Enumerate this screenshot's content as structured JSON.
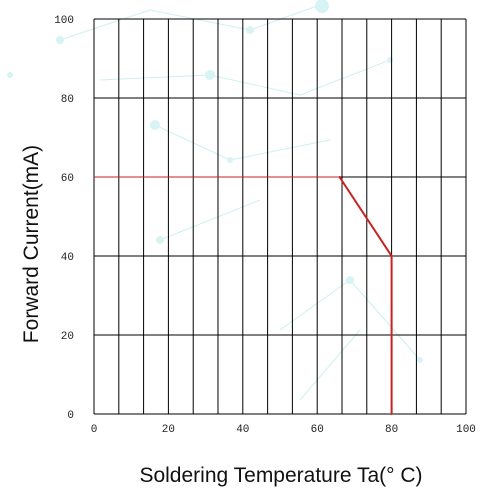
{
  "chart_data": {
    "type": "line",
    "title": "",
    "xlabel": "Soldering Temperature Ta(° C)",
    "ylabel": "Forward Current(mA)",
    "xlim": [
      0,
      100
    ],
    "ylim": [
      0,
      100
    ],
    "grid": true,
    "x_ticks": [
      {
        "value": 0,
        "label": "0"
      },
      {
        "value": 20,
        "label": "20"
      },
      {
        "value": 40,
        "label": "40"
      },
      {
        "value": 60,
        "label": "60"
      },
      {
        "value": 80,
        "label": "80"
      },
      {
        "value": 100,
        "label": "100"
      }
    ],
    "y_ticks": [
      {
        "value": 0,
        "label": "0"
      },
      {
        "value": 20,
        "label": "20"
      },
      {
        "value": 40,
        "label": "40"
      },
      {
        "value": 60,
        "label": "60"
      },
      {
        "value": 80,
        "label": "80"
      },
      {
        "value": 100,
        "label": "100"
      }
    ],
    "x_grid_values": [
      0,
      6.67,
      13.33,
      20,
      26.67,
      33.33,
      40,
      46.67,
      53.33,
      60,
      66.67,
      73.33,
      80,
      86.67,
      93.33,
      100
    ],
    "y_grid_values": [
      0,
      20,
      40,
      60,
      80,
      100
    ],
    "series": [
      {
        "color": "#cc1f24",
        "x": [
          0,
          66,
          80,
          80
        ],
        "y": [
          60,
          60,
          40,
          0
        ]
      }
    ]
  }
}
